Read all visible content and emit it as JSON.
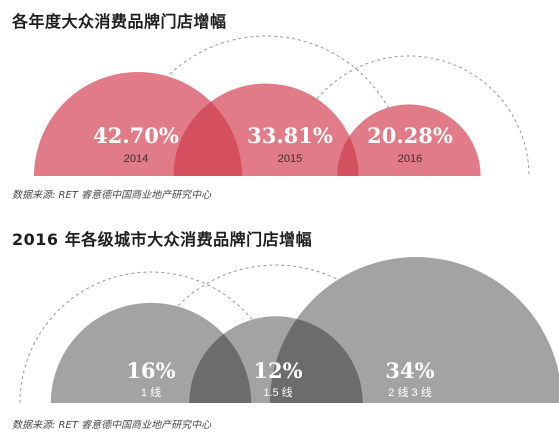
{
  "chart_data": [
    {
      "type": "semicircle-bubble",
      "title": "各年度大众消费品牌门店增幅",
      "source": "数据来源: RET 睿意德中国商业地产研究中心",
      "categories": [
        "2014",
        "2015",
        "2016"
      ],
      "values": [
        42.7,
        33.81,
        20.28
      ],
      "value_labels": [
        "42.70%",
        "33.81%",
        "20.28%"
      ],
      "unit": "%",
      "colors": {
        "fill": "#e17b87",
        "overlap": "#d4505f",
        "outline": "#9a9a9a",
        "label": "#ffffff",
        "category": "#333333"
      }
    },
    {
      "type": "semicircle-bubble",
      "title": "2016 年各级城市大众消费品牌门店增幅",
      "source": "数据来源: RET 睿意德中国商业地产研究中心",
      "categories": [
        "1 线",
        "1.5 线",
        "2 线 3 线"
      ],
      "values": [
        16,
        12,
        34
      ],
      "value_labels": [
        "16%",
        "12%",
        "34%"
      ],
      "unit": "%",
      "colors": {
        "fill": "#a3a3a3",
        "overlap": "#6c6c6c",
        "outline": "#9a9a9a",
        "label": "#ffffff",
        "category": "#ffffff"
      }
    }
  ]
}
